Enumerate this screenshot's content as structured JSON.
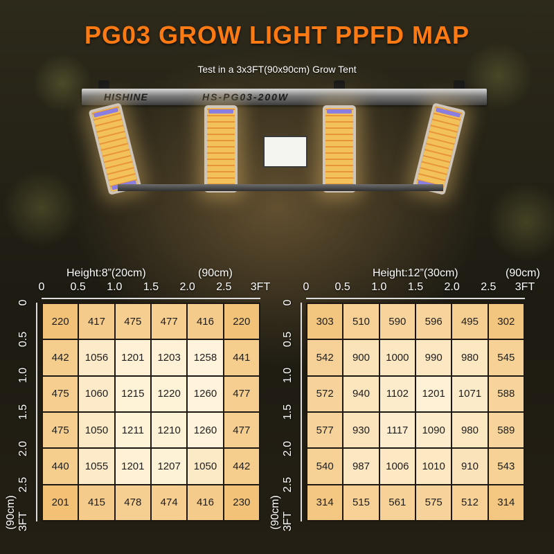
{
  "title": "PG03 GROW LIGHT PPFD MAP",
  "subtitle": "Test in a 3x3FT(90x90cm) Grow Tent",
  "fixture": {
    "brand": "HISHINE",
    "model": "HS-PG03-200W"
  },
  "maps": [
    {
      "height_label": "Height:8”(20cm)",
      "unit_top": "(90cm)",
      "unit_side": "(90cm)",
      "x_ticks": [
        "0",
        "0.5",
        "1.0",
        "1.5",
        "2.0",
        "2.5",
        "3FT"
      ],
      "y_ticks": [
        "0",
        "0.5",
        "1.0",
        "1.5",
        "2.0",
        "2.5",
        "3FT"
      ],
      "rows": [
        [
          "220",
          "417",
          "475",
          "477",
          "416",
          "220"
        ],
        [
          "442",
          "1056",
          "1201",
          "1203",
          "1258",
          "441"
        ],
        [
          "475",
          "1060",
          "1215",
          "1220",
          "1260",
          "477"
        ],
        [
          "475",
          "1050",
          "1211",
          "1210",
          "1260",
          "477"
        ],
        [
          "440",
          "1055",
          "1201",
          "1207",
          "1050",
          "442"
        ],
        [
          "201",
          "415",
          "478",
          "474",
          "416",
          "230"
        ]
      ]
    },
    {
      "height_label": "Height:12”(30cm)",
      "unit_top": "(90cm)",
      "unit_side": "(90cm)",
      "x_ticks": [
        "0",
        "0.5",
        "1.0",
        "1.5",
        "2.0",
        "2.5",
        "3FT"
      ],
      "y_ticks": [
        "0",
        "0.5",
        "1.0",
        "1.5",
        "2.0",
        "2.5",
        "3FT"
      ],
      "rows": [
        [
          "303",
          "510",
          "590",
          "596",
          "495",
          "302"
        ],
        [
          "542",
          "900",
          "1000",
          "990",
          "980",
          "545"
        ],
        [
          "572",
          "940",
          "1102",
          "1201",
          "1071",
          "588"
        ],
        [
          "577",
          "930",
          "1117",
          "1090",
          "980",
          "589"
        ],
        [
          "540",
          "987",
          "1006",
          "1010",
          "910",
          "543"
        ],
        [
          "314",
          "515",
          "561",
          "575",
          "512",
          "314"
        ]
      ]
    }
  ],
  "colors": {
    "title": "#ff7a12",
    "cell_low": "#f2c176",
    "cell_high": "#fff6df"
  }
}
